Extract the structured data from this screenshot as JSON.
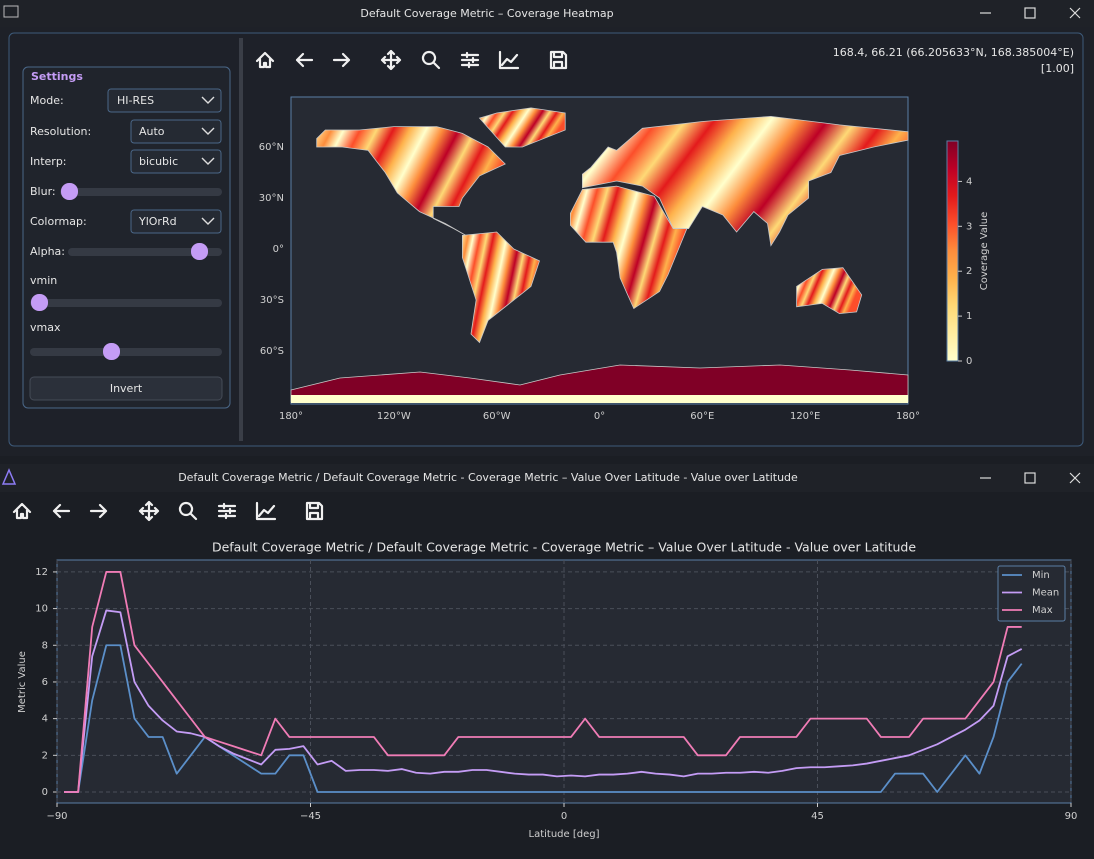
{
  "window1": {
    "title": "Default Coverage Metric – Coverage Heatmap"
  },
  "settings": {
    "title": "Settings",
    "mode_label": "Mode:",
    "mode": "HI-RES",
    "resolution_label": "Resolution:",
    "resolution": "Auto",
    "interp_label": "Interp:",
    "interp": "bicubic",
    "blur_label": "Blur:",
    "colormap_label": "Colormap:",
    "colormap": "YlOrRd",
    "alpha_label": "Alpha:",
    "vmin_label": "vmin",
    "vmax_label": "vmax",
    "invert": "Invert"
  },
  "status": {
    "coords": "168.4, 66.21 (66.205633°N, 168.385004°E)",
    "zoom": "[1.00]"
  },
  "heatmap": {
    "lon_ticks": [
      "180°",
      "120°W",
      "60°W",
      "0°",
      "60°E",
      "120°E",
      "180°"
    ],
    "lat_ticks": [
      "60°N",
      "30°N",
      "0°",
      "30°S",
      "60°S"
    ],
    "colorbar": {
      "label": "Coverage Value",
      "lim": [
        0,
        4.9
      ],
      "ticks": [
        0,
        1,
        2,
        3,
        4
      ]
    }
  },
  "window2": {
    "title": "Default Coverage Metric / Default Coverage Metric - Coverage Metric – Value Over Latitude - Value over Latitude"
  },
  "chart_data": {
    "type": "line",
    "title": "Default Coverage Metric / Default Coverage Metric - Coverage Metric – Value Over Latitude - Value over Latitude",
    "x_label": "Latitude [deg]",
    "y_label": "Metric Value",
    "x": [
      -88.75,
      -86.25,
      -83.75,
      -81.25,
      -78.75,
      -76.25,
      -73.75,
      -71.25,
      -68.75,
      -66.25,
      -63.75,
      -61.25,
      -58.75,
      -56.25,
      -53.75,
      -51.25,
      -48.75,
      -46.25,
      -43.75,
      -41.25,
      -38.75,
      -36.25,
      -33.75,
      -31.25,
      -28.75,
      -26.25,
      -23.75,
      -21.25,
      -18.75,
      -16.25,
      -13.75,
      -11.25,
      -8.75,
      -6.25,
      -3.75,
      -1.25,
      1.25,
      3.75,
      6.25,
      8.75,
      11.25,
      13.75,
      16.25,
      18.75,
      21.25,
      23.75,
      26.25,
      28.75,
      31.25,
      33.75,
      36.25,
      38.75,
      41.25,
      43.75,
      46.25,
      48.75,
      51.25,
      53.75,
      56.25,
      58.75,
      61.25,
      63.75,
      66.25,
      68.75,
      71.25,
      73.75,
      76.25,
      78.75,
      81.25
    ],
    "series": [
      {
        "name": "Min",
        "color": "#5b8fc9",
        "values": [
          0,
          0,
          5,
          8,
          8,
          4,
          3,
          3,
          1,
          2,
          3,
          2.5,
          2,
          1.5,
          1,
          1,
          2,
          2,
          0,
          0,
          0,
          0,
          0,
          0,
          0,
          0,
          0,
          0,
          0,
          0,
          0,
          0,
          0,
          0,
          0,
          0,
          0,
          0,
          0,
          0,
          0,
          0,
          0,
          0,
          0,
          0,
          0,
          0,
          0,
          0,
          0,
          0,
          0,
          0,
          0,
          0,
          0,
          0,
          0,
          1,
          1,
          1,
          0,
          1,
          2,
          1,
          3,
          6,
          7
        ]
      },
      {
        "name": "Mean",
        "color": "#c49cf5",
        "values": [
          0,
          0,
          7.4,
          9.9,
          9.8,
          6,
          4.7,
          3.9,
          3.3,
          3.2,
          3,
          2.5,
          2.1,
          1.8,
          1.5,
          2.3,
          2.35,
          2.5,
          1.5,
          1.7,
          1.15,
          1.2,
          1.2,
          1.15,
          1.25,
          1.05,
          1,
          1.1,
          1.1,
          1.2,
          1.2,
          1.1,
          1,
          0.95,
          0.95,
          0.85,
          0.9,
          0.85,
          0.95,
          0.95,
          1,
          1.1,
          1,
          0.95,
          0.85,
          1,
          1,
          1.05,
          1.05,
          1.1,
          1.05,
          1.15,
          1.3,
          1.35,
          1.35,
          1.4,
          1.45,
          1.55,
          1.7,
          1.85,
          2,
          2.3,
          2.6,
          3,
          3.4,
          3.9,
          4.7,
          7.4,
          7.8
        ]
      },
      {
        "name": "Max",
        "color": "#f07cb6",
        "values": [
          0,
          0,
          9,
          12,
          12,
          8,
          7,
          6,
          5,
          4,
          3,
          2.75,
          2.5,
          2.25,
          2,
          4,
          3,
          3,
          3,
          3,
          3,
          3,
          3,
          2,
          2,
          2,
          2,
          2,
          3,
          3,
          3,
          3,
          3,
          3,
          3,
          3,
          3,
          4,
          3,
          3,
          3,
          3,
          3,
          3,
          3,
          2,
          2,
          2,
          3,
          3,
          3,
          3,
          3,
          4,
          4,
          4,
          4,
          4,
          3,
          3,
          3,
          4,
          4,
          4,
          4,
          5,
          6,
          9,
          9
        ]
      }
    ],
    "xlim": [
      -90,
      90
    ],
    "xticks": [
      {
        "value": -90,
        "label": "−90"
      },
      {
        "value": -45,
        "label": "−45"
      },
      0,
      45,
      90
    ],
    "ylim": [
      -0.6,
      12.65
    ],
    "yticks": [
      0,
      2,
      4,
      6,
      8,
      10,
      12
    ],
    "grid": true,
    "legend": "upper right"
  }
}
